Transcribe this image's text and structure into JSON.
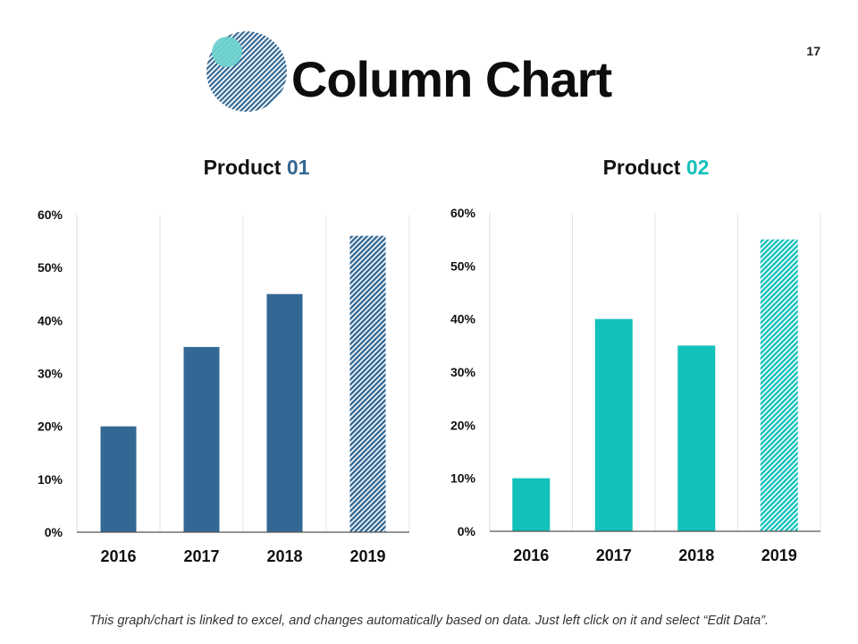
{
  "slide": {
    "title": "Column Chart",
    "number": "17"
  },
  "footer": {
    "note": "This graph/chart is linked to excel, and changes automatically based on data. Just left click on it and select “Edit Data”."
  },
  "colors": {
    "product1": "#336894",
    "product2": "#13c1bb",
    "circle_light": "#6fd3cd"
  },
  "chart_data": [
    {
      "type": "bar",
      "title_prefix": "Product ",
      "title_suffix": "01",
      "categories": [
        "2016",
        "2017",
        "2018",
        "2019"
      ],
      "values": [
        20,
        35,
        45,
        56
      ],
      "yticks": [
        "0%",
        "10%",
        "20%",
        "30%",
        "40%",
        "50%",
        "60%"
      ],
      "ylim": [
        0,
        60
      ],
      "grid": true
    },
    {
      "type": "bar",
      "title_prefix": "Product ",
      "title_suffix": "02",
      "categories": [
        "2016",
        "2017",
        "2018",
        "2019"
      ],
      "values": [
        10,
        40,
        35,
        55
      ],
      "yticks": [
        "0%",
        "10%",
        "20%",
        "30%",
        "40%",
        "50%",
        "60%"
      ],
      "ylim": [
        0,
        60
      ],
      "grid": true
    }
  ]
}
